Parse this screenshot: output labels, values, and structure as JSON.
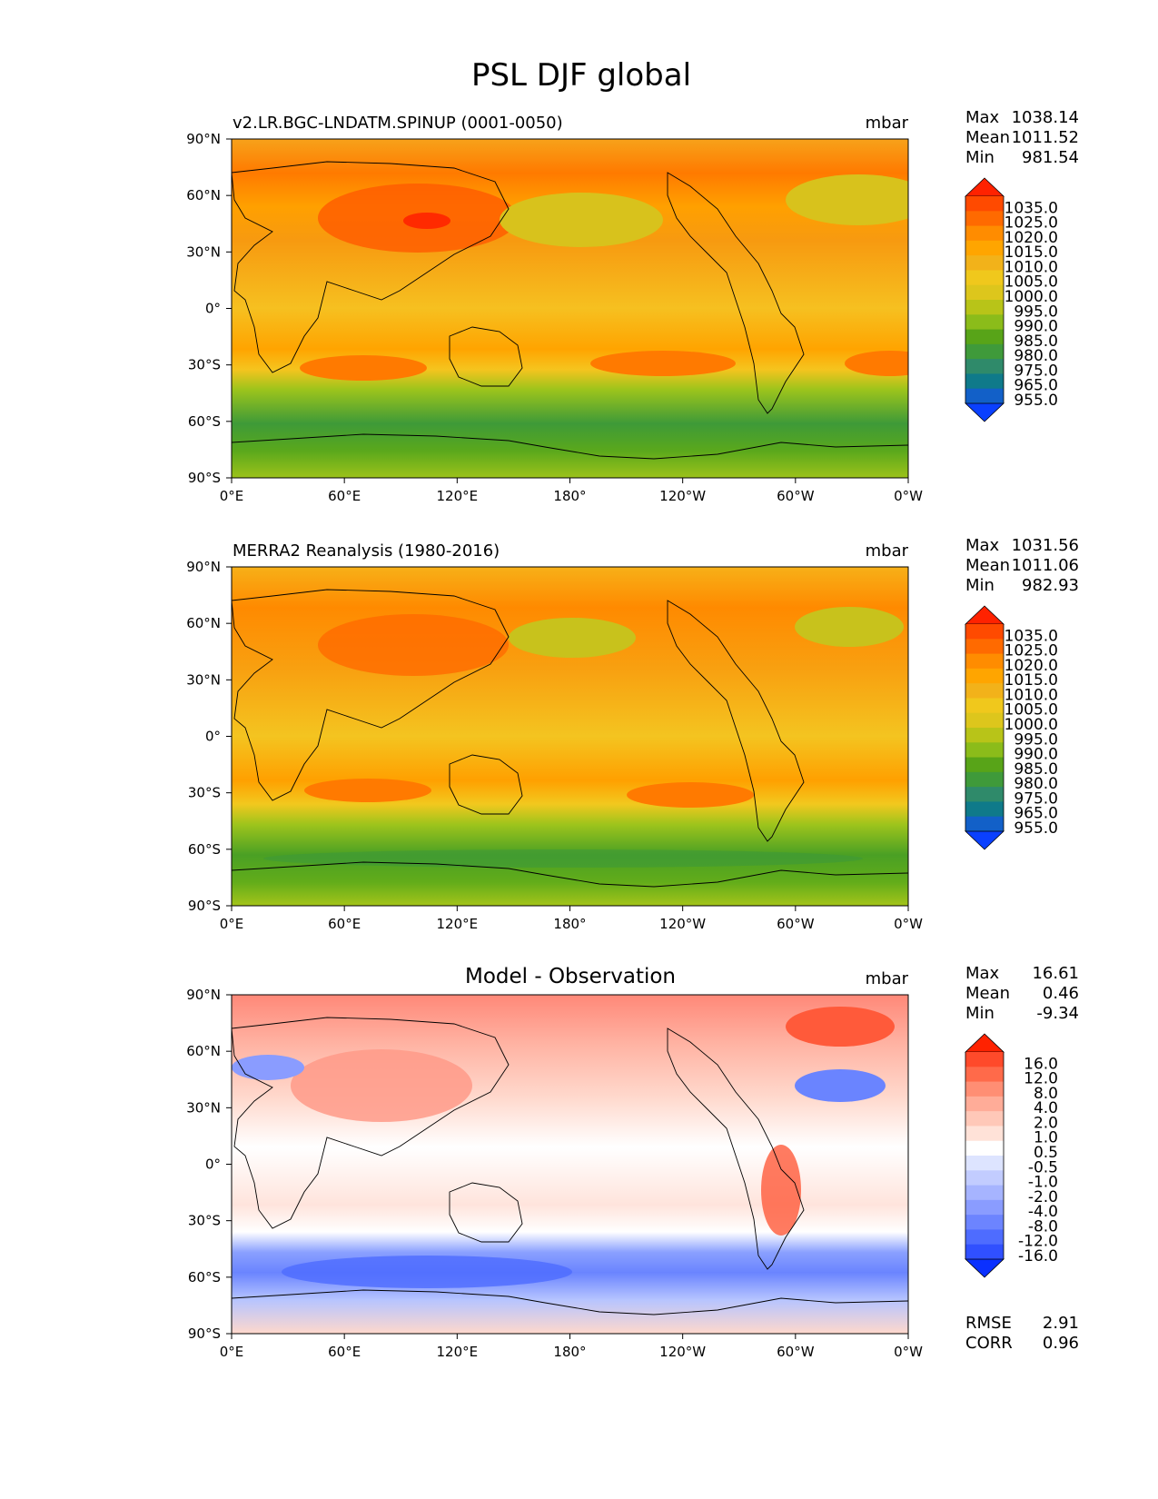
{
  "figure_title": "PSL DJF global",
  "units": "mbar",
  "colors": {
    "background": "#ffffff",
    "coastline": "#000000",
    "frame": "#000000"
  },
  "chart_data": [
    {
      "type": "heatmap",
      "title": "v2.LR.BGC-LNDATM.SPINUP (0001-0050)",
      "units_label": "mbar",
      "xlim": [
        0,
        360
      ],
      "ylim": [
        -90,
        90
      ],
      "x_ticks": [
        "0°E",
        "60°E",
        "120°E",
        "180°",
        "120°W",
        "60°W",
        "0°W"
      ],
      "y_ticks": [
        "90°N",
        "60°N",
        "30°N",
        "0°",
        "30°S",
        "60°S",
        "90°S"
      ],
      "stats": [
        {
          "label": "Max",
          "value": "1038.14"
        },
        {
          "label": "Mean",
          "value": "1011.52"
        },
        {
          "label": "Min",
          "value": "981.54"
        }
      ],
      "colorbar": {
        "labels": [
          "1035.0",
          "1025.0",
          "1020.0",
          "1015.0",
          "1010.0",
          "1005.0",
          "1000.0",
          "995.0",
          "990.0",
          "985.0",
          "980.0",
          "975.0",
          "965.0",
          "955.0"
        ],
        "colors": [
          "#ff2200",
          "#ff4a00",
          "#ff6a00",
          "#ff8c00",
          "#ffa500",
          "#f2b21a",
          "#f0c81c",
          "#ddc61c",
          "#b8c418",
          "#8bbc1a",
          "#58a418",
          "#3f9a3a",
          "#2f8a6a",
          "#0f7a8a",
          "#1260c8",
          "#0a40ff"
        ],
        "extend": "both"
      },
      "footer_stats": []
    },
    {
      "type": "heatmap",
      "title": "MERRA2 Reanalysis (1980-2016)",
      "units_label": "mbar",
      "xlim": [
        0,
        360
      ],
      "ylim": [
        -90,
        90
      ],
      "x_ticks": [
        "0°E",
        "60°E",
        "120°E",
        "180°",
        "120°W",
        "60°W",
        "0°W"
      ],
      "y_ticks": [
        "90°N",
        "60°N",
        "30°N",
        "0°",
        "30°S",
        "60°S",
        "90°S"
      ],
      "stats": [
        {
          "label": "Max",
          "value": "1031.56"
        },
        {
          "label": "Mean",
          "value": "1011.06"
        },
        {
          "label": "Min",
          "value": "982.93"
        }
      ],
      "colorbar": {
        "labels": [
          "1035.0",
          "1025.0",
          "1020.0",
          "1015.0",
          "1010.0",
          "1005.0",
          "1000.0",
          "995.0",
          "990.0",
          "985.0",
          "980.0",
          "975.0",
          "965.0",
          "955.0"
        ],
        "colors": [
          "#ff2200",
          "#ff4a00",
          "#ff6a00",
          "#ff8c00",
          "#ffa500",
          "#f2b21a",
          "#f0c81c",
          "#ddc61c",
          "#b8c418",
          "#8bbc1a",
          "#58a418",
          "#3f9a3a",
          "#2f8a6a",
          "#0f7a8a",
          "#1260c8",
          "#0a40ff"
        ],
        "extend": "both"
      },
      "footer_stats": []
    },
    {
      "type": "heatmap",
      "title": "Model - Observation",
      "units_label": "mbar",
      "xlim": [
        0,
        360
      ],
      "ylim": [
        -90,
        90
      ],
      "x_ticks": [
        "0°E",
        "60°E",
        "120°E",
        "180°",
        "120°W",
        "60°W",
        "0°W"
      ],
      "y_ticks": [
        "90°N",
        "60°N",
        "30°N",
        "0°",
        "30°S",
        "60°S",
        "90°S"
      ],
      "stats": [
        {
          "label": "Max",
          "value": "16.61"
        },
        {
          "label": "Mean",
          "value": "0.46"
        },
        {
          "label": "Min",
          "value": "-9.34"
        }
      ],
      "colorbar": {
        "labels": [
          "16.0",
          "12.0",
          "8.0",
          "4.0",
          "2.0",
          "1.0",
          "0.5",
          "-0.5",
          "-1.0",
          "-2.0",
          "-4.0",
          "-8.0",
          "-12.0",
          "-16.0"
        ],
        "colors": [
          "#ff2200",
          "#ff4a2a",
          "#ff6a4a",
          "#ff8e74",
          "#ffac98",
          "#ffc8b8",
          "#ffe2d8",
          "#ffffff",
          "#dde4ff",
          "#c2ccff",
          "#a6b4ff",
          "#8a9cff",
          "#6c84ff",
          "#4e6cff",
          "#3050ff",
          "#0a30ff"
        ],
        "extend": "both"
      },
      "footer_stats": [
        {
          "label": "RMSE",
          "value": "2.91"
        },
        {
          "label": "CORR",
          "value": "0.96"
        }
      ]
    }
  ]
}
